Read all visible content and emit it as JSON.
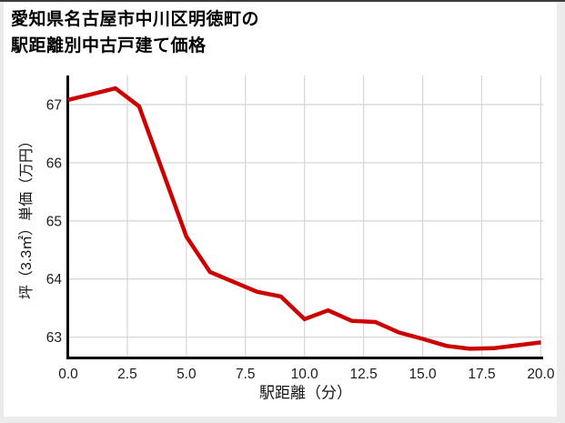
{
  "page": {
    "background_color": "#ebebeb",
    "card_color": "#ffffff",
    "top_bar_color": "#3c3c3c"
  },
  "title": {
    "line1": "愛知県名古屋市中川区明徳町の",
    "line2": "駅距離別中古戸建て価格"
  },
  "chart_data": {
    "type": "line",
    "title": "愛知県名古屋市中川区明徳町の駅距離別中古戸建て価格",
    "xlabel": "駅距離（分）",
    "ylabel": "坪（3.3㎡）単価（万円）",
    "x": [
      0,
      1,
      2,
      3,
      4,
      5,
      6,
      7,
      8,
      9,
      10,
      11,
      12,
      13,
      14,
      15,
      16,
      17,
      18,
      19,
      20
    ],
    "values": [
      67.08,
      67.18,
      67.28,
      66.97,
      65.85,
      64.73,
      64.12,
      63.95,
      63.78,
      63.7,
      63.31,
      63.46,
      63.28,
      63.26,
      63.08,
      62.97,
      62.85,
      62.8,
      62.81,
      62.86,
      62.91
    ],
    "x_ticks": [
      0,
      2.5,
      5,
      7.5,
      10,
      12.5,
      15,
      17.5,
      20
    ],
    "x_tick_labels": [
      "0.0",
      "2.5",
      "5.0",
      "7.5",
      "10.0",
      "12.5",
      "15.0",
      "17.5",
      "20.0"
    ],
    "y_ticks": [
      63,
      64,
      65,
      66,
      67
    ],
    "y_tick_labels": [
      "63",
      "64",
      "65",
      "66",
      "67"
    ],
    "xlim": [
      0,
      20.1
    ],
    "ylim": [
      62.65,
      67.5
    ],
    "grid": true,
    "legend": "none",
    "line_color": "#cc0000",
    "grid_color": "#d8d8d8",
    "axis_color": "#000000"
  }
}
